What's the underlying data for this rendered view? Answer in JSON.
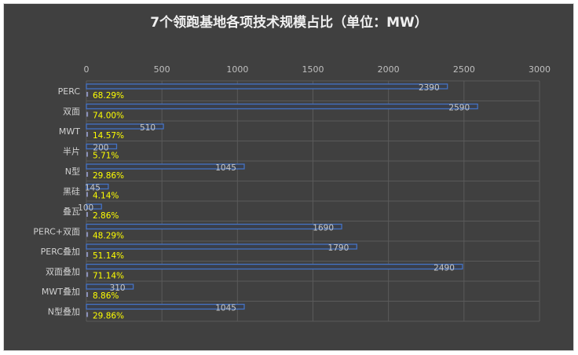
{
  "chart_data": {
    "type": "bar",
    "orientation": "horizontal",
    "title": "7个领跑基地各项技术规模占比（单位：MW）",
    "categories": [
      "PERC",
      "双面",
      "MWT",
      "半片",
      "N型",
      "黑硅",
      "叠瓦",
      "PERC+双面",
      "PERC叠加",
      "双面叠加",
      "MWT叠加",
      "N型叠加"
    ],
    "series": [
      {
        "values": [
          2390,
          2590,
          510,
          200,
          1045,
          145,
          100,
          1690,
          1790,
          2490,
          310,
          1045
        ],
        "labels": [
          "2390",
          "2590",
          "510",
          "200",
          "1045",
          "145",
          "100",
          "1690",
          "1790",
          "2490",
          "310",
          "1045"
        ],
        "color": "#4472c4"
      },
      {
        "values": [
          0.6829,
          0.74,
          0.1457,
          0.0571,
          0.2986,
          0.0414,
          0.0286,
          0.4829,
          0.5114,
          0.7114,
          0.0886,
          0.2986
        ],
        "labels": [
          "68.29%",
          "74.00%",
          "14.57%",
          "5.71%",
          "29.86%",
          "4.14%",
          "2.86%",
          "48.29%",
          "51.14%",
          "71.14%",
          "8.86%",
          "29.86%"
        ],
        "label_color": "#ffff00"
      }
    ],
    "xlim": [
      0,
      3000
    ],
    "xticks": [
      "0",
      "500",
      "1000",
      "1500",
      "2000",
      "2500",
      "3000"
    ],
    "grid": true,
    "axis_position": "top"
  }
}
